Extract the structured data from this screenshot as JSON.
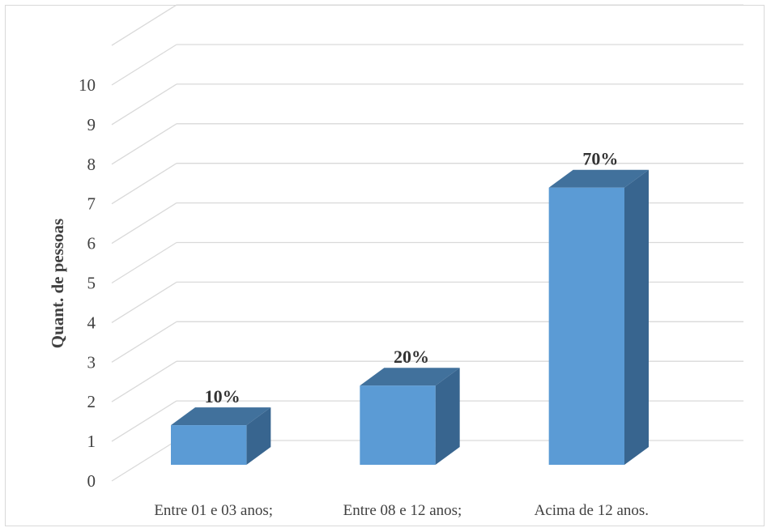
{
  "chart_data": {
    "type": "bar",
    "style": "3d-column",
    "categories": [
      "Entre 01 e 03 anos;",
      "Entre 08 e 12 anos;",
      "Acima de 12 anos."
    ],
    "values": [
      1,
      2,
      7
    ],
    "data_labels": [
      "10%",
      "20%",
      "70%"
    ],
    "ylabel": "Quant. de pessoas",
    "xlabel": "",
    "ylim": [
      0,
      11
    ],
    "yticks": [
      "0",
      "1",
      "2",
      "3",
      "4",
      "5",
      "6",
      "7",
      "8",
      "9",
      "10"
    ],
    "grid": true,
    "legend": "none",
    "colors": {
      "bar_front": "#5b9bd5",
      "bar_top": "#41719c",
      "bar_side": "#38658f",
      "gridline": "#d9d9d9",
      "text": "#404040"
    }
  }
}
